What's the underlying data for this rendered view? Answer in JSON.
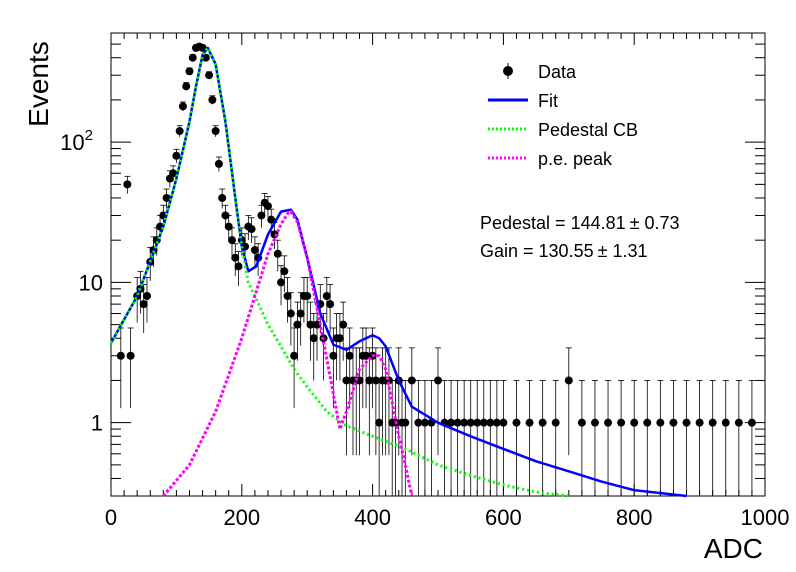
{
  "chart_data": {
    "type": "scatter",
    "xlabel": "ADC",
    "ylabel": "Events",
    "xlim": [
      0,
      1000
    ],
    "ylim": [
      0.3,
      600
    ],
    "yscale": "log",
    "x_ticks": [
      0,
      200,
      400,
      600,
      800,
      1000
    ],
    "y_tick_labels": [
      {
        "value": 1,
        "label": "1"
      },
      {
        "value": 10,
        "label": "10"
      },
      {
        "value": 100,
        "label": "10",
        "sup": "2"
      }
    ],
    "legend": {
      "placement": "top-right",
      "entries": [
        {
          "label": "Data",
          "style": "marker"
        },
        {
          "label": "Fit",
          "style": "solid",
          "color": "#0000ff"
        },
        {
          "label": "Pedestal CB",
          "style": "dotted",
          "color": "#00ff00"
        },
        {
          "label": "p.e. peak",
          "style": "dotted",
          "color": "#ff00ff"
        }
      ]
    },
    "annotations": [
      {
        "text": "Pedestal = 144.81",
        "pm": "± 0.73"
      },
      {
        "text": "Gain = 130.55",
        "pm": "± 1.31"
      }
    ],
    "colors": {
      "data": "#000000",
      "fit": "#0000ff",
      "pedestal": "#00ff00",
      "pe_peak": "#ff00ff"
    },
    "series": [
      {
        "name": "Data",
        "type": "scatter",
        "x": [
          15,
          25,
          30,
          40,
          45,
          50,
          55,
          60,
          65,
          70,
          75,
          80,
          85,
          90,
          95,
          100,
          105,
          110,
          115,
          120,
          125,
          130,
          135,
          140,
          145,
          150,
          155,
          160,
          165,
          170,
          175,
          180,
          185,
          190,
          195,
          200,
          205,
          210,
          215,
          220,
          225,
          230,
          235,
          240,
          245,
          250,
          255,
          260,
          265,
          270,
          275,
          280,
          285,
          290,
          295,
          300,
          305,
          310,
          315,
          320,
          325,
          330,
          335,
          340,
          345,
          350,
          355,
          360,
          365,
          370,
          375,
          380,
          385,
          390,
          395,
          400,
          405,
          410,
          415,
          420,
          425,
          430,
          435,
          440,
          445,
          450,
          460,
          470,
          480,
          490,
          500,
          510,
          520,
          530,
          540,
          550,
          560,
          570,
          580,
          590,
          600,
          620,
          640,
          660,
          680,
          700,
          720,
          740,
          760,
          780,
          800,
          820,
          840,
          860,
          880,
          900,
          920,
          940,
          960,
          980
        ],
        "y": [
          3,
          50,
          3,
          8,
          9,
          7,
          8,
          14,
          17,
          20,
          25,
          30,
          40,
          55,
          60,
          80,
          120,
          180,
          250,
          320,
          400,
          470,
          480,
          470,
          400,
          300,
          200,
          120,
          70,
          40,
          30,
          25,
          20,
          15,
          13,
          20,
          18,
          25,
          24,
          17,
          15,
          30,
          37,
          35,
          28,
          22,
          16,
          10,
          12,
          8,
          6,
          3,
          5,
          6,
          8,
          8,
          5,
          4,
          5,
          7,
          4,
          8,
          7,
          3,
          4,
          4,
          5,
          2,
          3,
          2,
          2,
          2,
          3,
          3,
          2,
          3,
          2,
          1,
          2,
          2,
          2,
          1,
          1,
          2,
          1,
          1,
          2,
          1,
          1,
          1,
          2,
          1,
          1,
          1,
          1,
          1,
          1,
          1,
          1,
          1,
          1,
          1,
          1,
          1,
          1,
          2,
          1,
          1,
          1,
          1,
          1,
          1,
          1,
          1,
          1,
          1,
          1,
          1,
          1,
          1
        ]
      },
      {
        "name": "Fit",
        "type": "line",
        "x": [
          0,
          40,
          80,
          100,
          120,
          130,
          140,
          148,
          160,
          175,
          190,
          200,
          210,
          222,
          240,
          260,
          275,
          285,
          300,
          320,
          340,
          360,
          380,
          400,
          410,
          420,
          440,
          460,
          500,
          550,
          600,
          650,
          700,
          750,
          800,
          880
        ],
        "y": [
          3.7,
          8,
          25,
          55,
          140,
          250,
          420,
          470,
          360,
          140,
          40,
          18,
          12,
          13,
          22,
          32,
          33,
          28,
          15,
          6,
          3.6,
          3.3,
          3.8,
          4.2,
          4,
          3.5,
          2,
          1.3,
          1,
          0.8,
          0.65,
          0.53,
          0.45,
          0.38,
          0.33,
          0.29
        ]
      },
      {
        "name": "Pedestal CB",
        "type": "line",
        "x": [
          0,
          40,
          80,
          100,
          120,
          130,
          140,
          148,
          160,
          175,
          190,
          200,
          210,
          220,
          240,
          260,
          280,
          300,
          330,
          360,
          400,
          450,
          500,
          550,
          600,
          650,
          700
        ],
        "y": [
          3.7,
          8,
          25,
          55,
          140,
          250,
          420,
          470,
          360,
          140,
          40,
          18,
          10,
          8,
          5,
          3.5,
          2.4,
          1.8,
          1.2,
          0.95,
          0.8,
          0.65,
          0.5,
          0.42,
          0.36,
          0.32,
          0.28
        ]
      },
      {
        "name": "p.e. peak",
        "type": "line",
        "x": [
          80,
          120,
          160,
          200,
          220,
          240,
          260,
          270,
          275,
          285,
          300,
          320,
          340,
          350,
          360,
          380,
          400,
          410,
          420,
          440,
          450,
          460
        ],
        "y": [
          0.3,
          0.5,
          1.2,
          4,
          8,
          16,
          26,
          31,
          32,
          27,
          15,
          5,
          1.6,
          0.9,
          1.2,
          2.4,
          3,
          3,
          2.4,
          0.8,
          0.5,
          0.3
        ]
      }
    ]
  }
}
